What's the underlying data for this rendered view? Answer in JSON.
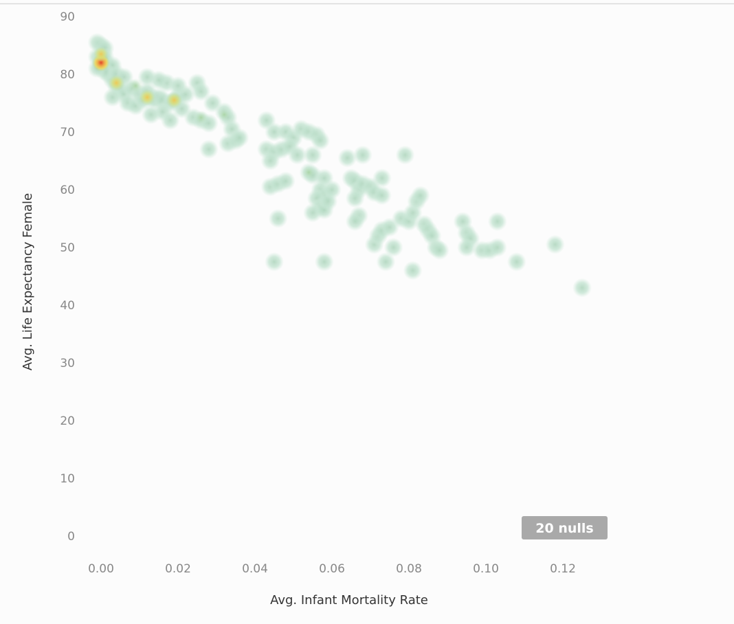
{
  "chart_data": {
    "type": "scatter",
    "style": "density-heatmap",
    "xlabel": "Avg. Infant Mortality Rate",
    "ylabel": "Avg. Life Expectancy Female",
    "xlim": [
      -0.005,
      0.13
    ],
    "ylim": [
      0,
      90
    ],
    "x_ticks": [
      0,
      0.02,
      0.04,
      0.06,
      0.08,
      0.1,
      0.12
    ],
    "x_tick_labels": [
      "0.00",
      "0.02",
      "0.04",
      "0.06",
      "0.08",
      "0.10",
      "0.12"
    ],
    "y_ticks": [
      0,
      10,
      20,
      30,
      40,
      50,
      60,
      70,
      80,
      90
    ],
    "y_tick_labels": [
      "0",
      "10",
      "20",
      "30",
      "40",
      "50",
      "60",
      "70",
      "80",
      "90"
    ],
    "grid": false,
    "nulls_label": "20 nulls",
    "colors": {
      "low": "#c4e8d6",
      "mid": "#a7d08c",
      "high": "#f2d24a",
      "peak": "#e0452c",
      "nulls_badge": "#a9a9a9"
    },
    "points": [
      {
        "x": -0.001,
        "y": 85.5
      },
      {
        "x": 0.0,
        "y": 85.0
      },
      {
        "x": 0.001,
        "y": 84.5
      },
      {
        "x": -0.001,
        "y": 83.0
      },
      {
        "x": 0.0,
        "y": 82.5
      },
      {
        "x": 0.0,
        "y": 82.0
      },
      {
        "x": 0.0,
        "y": 81.5
      },
      {
        "x": 0.001,
        "y": 82.0
      },
      {
        "x": 0.001,
        "y": 83.0
      },
      {
        "x": 0.002,
        "y": 81.0
      },
      {
        "x": 0.002,
        "y": 80.0
      },
      {
        "x": 0.003,
        "y": 81.5
      },
      {
        "x": 0.003,
        "y": 79.0
      },
      {
        "x": 0.001,
        "y": 80.5
      },
      {
        "x": -0.001,
        "y": 81.0
      },
      {
        "x": 0.004,
        "y": 78.0
      },
      {
        "x": 0.005,
        "y": 77.5
      },
      {
        "x": 0.006,
        "y": 76.5
      },
      {
        "x": 0.004,
        "y": 80.0
      },
      {
        "x": 0.006,
        "y": 79.5
      },
      {
        "x": 0.008,
        "y": 77.5
      },
      {
        "x": 0.003,
        "y": 76.0
      },
      {
        "x": 0.007,
        "y": 75.0
      },
      {
        "x": 0.009,
        "y": 74.5
      },
      {
        "x": 0.01,
        "y": 76.5
      },
      {
        "x": 0.011,
        "y": 75.5
      },
      {
        "x": 0.012,
        "y": 77.0
      },
      {
        "x": 0.013,
        "y": 76.0
      },
      {
        "x": 0.014,
        "y": 75.5
      },
      {
        "x": 0.015,
        "y": 76.0
      },
      {
        "x": 0.016,
        "y": 75.5
      },
      {
        "x": 0.018,
        "y": 75.0
      },
      {
        "x": 0.019,
        "y": 75.5
      },
      {
        "x": 0.02,
        "y": 76.0
      },
      {
        "x": 0.017,
        "y": 78.5
      },
      {
        "x": 0.015,
        "y": 79.0
      },
      {
        "x": 0.012,
        "y": 79.5
      },
      {
        "x": 0.016,
        "y": 73.5
      },
      {
        "x": 0.018,
        "y": 72.0
      },
      {
        "x": 0.013,
        "y": 73.0
      },
      {
        "x": 0.021,
        "y": 74.0
      },
      {
        "x": 0.022,
        "y": 76.5
      },
      {
        "x": 0.02,
        "y": 78.0
      },
      {
        "x": 0.025,
        "y": 78.5
      },
      {
        "x": 0.026,
        "y": 77.0
      },
      {
        "x": 0.024,
        "y": 72.5
      },
      {
        "x": 0.026,
        "y": 72.0
      },
      {
        "x": 0.028,
        "y": 71.5
      },
      {
        "x": 0.029,
        "y": 75.0
      },
      {
        "x": 0.028,
        "y": 67.0
      },
      {
        "x": 0.032,
        "y": 73.5
      },
      {
        "x": 0.033,
        "y": 72.5
      },
      {
        "x": 0.034,
        "y": 70.5
      },
      {
        "x": 0.033,
        "y": 68.0
      },
      {
        "x": 0.035,
        "y": 68.5
      },
      {
        "x": 0.036,
        "y": 69.0
      },
      {
        "x": 0.043,
        "y": 72.0
      },
      {
        "x": 0.045,
        "y": 70.0
      },
      {
        "x": 0.043,
        "y": 67.0
      },
      {
        "x": 0.045,
        "y": 66.5
      },
      {
        "x": 0.047,
        "y": 67.0
      },
      {
        "x": 0.044,
        "y": 65.0
      },
      {
        "x": 0.048,
        "y": 70.0
      },
      {
        "x": 0.05,
        "y": 69.0
      },
      {
        "x": 0.052,
        "y": 70.5
      },
      {
        "x": 0.054,
        "y": 70.0
      },
      {
        "x": 0.056,
        "y": 69.5
      },
      {
        "x": 0.057,
        "y": 68.5
      },
      {
        "x": 0.049,
        "y": 67.5
      },
      {
        "x": 0.051,
        "y": 66.0
      },
      {
        "x": 0.055,
        "y": 66.0
      },
      {
        "x": 0.044,
        "y": 60.5
      },
      {
        "x": 0.046,
        "y": 61.0
      },
      {
        "x": 0.048,
        "y": 61.5
      },
      {
        "x": 0.054,
        "y": 63.0
      },
      {
        "x": 0.055,
        "y": 62.5
      },
      {
        "x": 0.046,
        "y": 55.0
      },
      {
        "x": 0.058,
        "y": 62.0
      },
      {
        "x": 0.057,
        "y": 60.0
      },
      {
        "x": 0.058,
        "y": 59.0
      },
      {
        "x": 0.056,
        "y": 58.5
      },
      {
        "x": 0.057,
        "y": 57.0
      },
      {
        "x": 0.055,
        "y": 56.0
      },
      {
        "x": 0.058,
        "y": 56.5
      },
      {
        "x": 0.059,
        "y": 58.0
      },
      {
        "x": 0.06,
        "y": 60.0
      },
      {
        "x": 0.064,
        "y": 65.5
      },
      {
        "x": 0.068,
        "y": 66.0
      },
      {
        "x": 0.065,
        "y": 62.0
      },
      {
        "x": 0.066,
        "y": 61.5
      },
      {
        "x": 0.067,
        "y": 60.0
      },
      {
        "x": 0.068,
        "y": 61.0
      },
      {
        "x": 0.07,
        "y": 60.5
      },
      {
        "x": 0.071,
        "y": 59.5
      },
      {
        "x": 0.066,
        "y": 58.5
      },
      {
        "x": 0.067,
        "y": 55.5
      },
      {
        "x": 0.066,
        "y": 54.5
      },
      {
        "x": 0.073,
        "y": 62.0
      },
      {
        "x": 0.073,
        "y": 59.0
      },
      {
        "x": 0.079,
        "y": 66.0
      },
      {
        "x": 0.071,
        "y": 50.5
      },
      {
        "x": 0.072,
        "y": 52.0
      },
      {
        "x": 0.073,
        "y": 53.0
      },
      {
        "x": 0.075,
        "y": 53.5
      },
      {
        "x": 0.076,
        "y": 50.0
      },
      {
        "x": 0.074,
        "y": 47.5
      },
      {
        "x": 0.078,
        "y": 55.0
      },
      {
        "x": 0.08,
        "y": 54.5
      },
      {
        "x": 0.081,
        "y": 56.0
      },
      {
        "x": 0.082,
        "y": 58.0
      },
      {
        "x": 0.083,
        "y": 59.0
      },
      {
        "x": 0.084,
        "y": 54.0
      },
      {
        "x": 0.085,
        "y": 53.0
      },
      {
        "x": 0.086,
        "y": 52.0
      },
      {
        "x": 0.087,
        "y": 50.0
      },
      {
        "x": 0.088,
        "y": 49.5
      },
      {
        "x": 0.081,
        "y": 46.0
      },
      {
        "x": 0.045,
        "y": 47.5
      },
      {
        "x": 0.058,
        "y": 47.5
      },
      {
        "x": 0.094,
        "y": 54.5
      },
      {
        "x": 0.095,
        "y": 52.5
      },
      {
        "x": 0.096,
        "y": 51.5
      },
      {
        "x": 0.095,
        "y": 50.0
      },
      {
        "x": 0.099,
        "y": 49.5
      },
      {
        "x": 0.101,
        "y": 49.5
      },
      {
        "x": 0.103,
        "y": 50.0
      },
      {
        "x": 0.103,
        "y": 54.5
      },
      {
        "x": 0.108,
        "y": 47.5
      },
      {
        "x": 0.118,
        "y": 50.5
      },
      {
        "x": 0.125,
        "y": 43.0
      }
    ]
  }
}
